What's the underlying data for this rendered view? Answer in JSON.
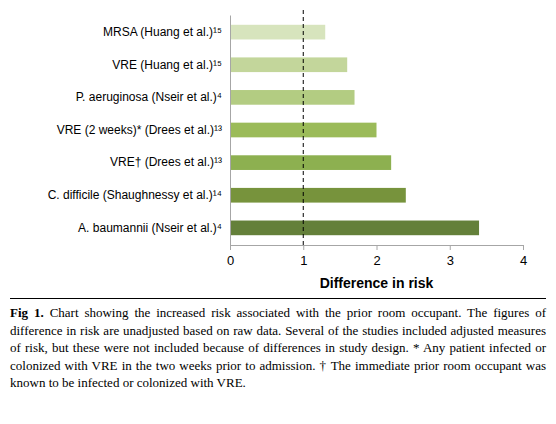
{
  "chart_data": {
    "type": "bar",
    "orientation": "horizontal",
    "categories": [
      "MRSA (Huang et al.)¹⁵",
      "VRE (Huang et al.)¹⁵",
      "P. aeruginosa (Nseir et al.)⁴",
      "VRE (2 weeks)* (Drees et al.)¹³",
      "VRE† (Drees et al.)¹³",
      "C. difficile (Shaughnessy et al.)¹⁴",
      "A. baumannii (Nseir et al.)⁴"
    ],
    "values": [
      1.3,
      1.6,
      1.7,
      2.0,
      2.2,
      2.4,
      3.4
    ],
    "colors": [
      "#d7e4bd",
      "#c3d69b",
      "#b3cc82",
      "#9bbb59",
      "#8db050",
      "#77933c",
      "#64803a"
    ],
    "x_label": "Difference in risk",
    "xlim": [
      0,
      4
    ],
    "xticks": [
      0,
      1,
      2,
      3,
      4
    ],
    "reference_line": 1,
    "grid": false
  },
  "caption": {
    "label": "Fig 1.",
    "text": "Chart showing the increased risk associated with the prior room occupant. The figures of difference in risk are unadjusted based on raw data. Several of the studies included adjusted measures of risk, but these were not included because of differences in study design. * Any patient infected or colonized with VRE in the two weeks prior to admission. † The immediate prior room occupant was known to be infected or colonized with VRE."
  }
}
